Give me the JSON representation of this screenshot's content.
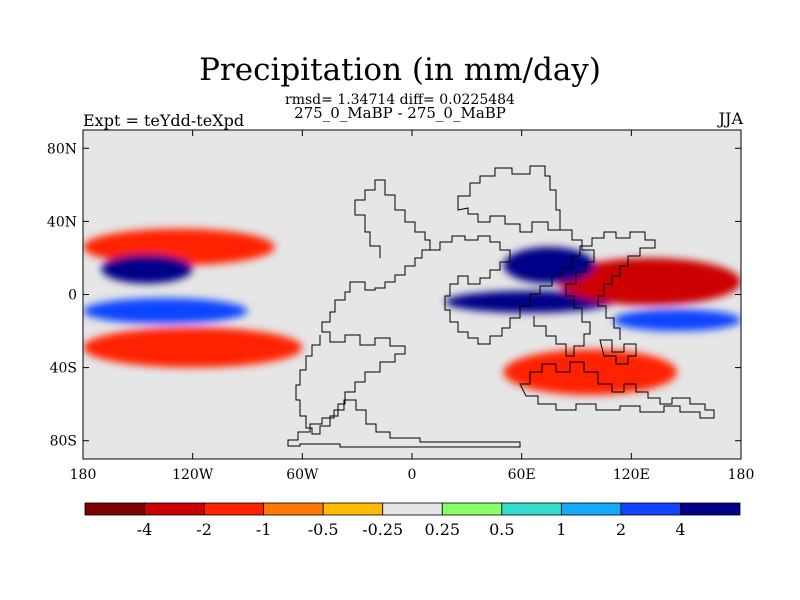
{
  "chart_data": {
    "type": "heatmap",
    "title": "Precipitation (in mm/day)",
    "subtitle_stats": "rmsd= 1.34714 diff= 0.0225484",
    "subtitle_runs": "275_0_MaBP - 275_0_MaBP",
    "left_label": "Expt = teYdd-teXpd",
    "right_label": "JJA",
    "projection": "cylindrical equidistant",
    "x_range": [
      -180,
      180
    ],
    "y_range": [
      -90,
      90
    ],
    "x_ticks": [
      {
        "value": -180,
        "label": "180"
      },
      {
        "value": -120,
        "label": "120W"
      },
      {
        "value": -60,
        "label": "60W"
      },
      {
        "value": 0,
        "label": "0"
      },
      {
        "value": 60,
        "label": "60E"
      },
      {
        "value": 120,
        "label": "120E"
      },
      {
        "value": 180,
        "label": "180"
      }
    ],
    "y_ticks": [
      {
        "value": 80,
        "label": "80N"
      },
      {
        "value": 40,
        "label": "40N"
      },
      {
        "value": 0,
        "label": "0"
      },
      {
        "value": -40,
        "label": "40S"
      },
      {
        "value": -80,
        "label": "80S"
      }
    ],
    "contour_levels": [
      -4,
      -2,
      -1,
      -0.5,
      -0.25,
      0.25,
      0.5,
      1,
      2,
      4
    ],
    "colorbar_labels": [
      "-4",
      "-2",
      "-1",
      "-0.5",
      "-0.25",
      "0.25",
      "0.5",
      "1",
      "2",
      "4"
    ],
    "colors": [
      "#7f0000",
      "#cc0000",
      "#ff2200",
      "#ff7700",
      "#ffbb00",
      "#e6e6e6",
      "#88ff66",
      "#33ddcc",
      "#11aaff",
      "#1144ff",
      "#000088"
    ],
    "anomaly_regions": [
      {
        "desc": "north Pacific ITCZ dry",
        "lon": [
          -180,
          -75
        ],
        "lat": [
          16,
          36
        ],
        "value": -2
      },
      {
        "desc": "north Pacific wet core",
        "lon": [
          -170,
          -120
        ],
        "lat": [
          6,
          22
        ],
        "value": 4
      },
      {
        "desc": "equatorial Pacific wet",
        "lon": [
          -180,
          -90
        ],
        "lat": [
          -16,
          -2
        ],
        "value": 2
      },
      {
        "desc": "south Pacific dry",
        "lon": [
          -180,
          -60
        ],
        "lat": [
          -40,
          -18
        ],
        "value": -2
      },
      {
        "desc": "Indian Ocean wet",
        "lon": [
          18,
          110
        ],
        "lat": [
          -10,
          2
        ],
        "value": 4
      },
      {
        "desc": "Asia-Pacific dry core",
        "lon": [
          80,
          180
        ],
        "lat": [
          -6,
          20
        ],
        "value": -4
      },
      {
        "desc": "South Asia wet",
        "lon": [
          50,
          100
        ],
        "lat": [
          6,
          26
        ],
        "value": 4
      },
      {
        "desc": "southern Indian Ocean dry",
        "lon": [
          50,
          145
        ],
        "lat": [
          -55,
          -30
        ],
        "value": -2
      },
      {
        "desc": "western Pacific wet band",
        "lon": [
          110,
          180
        ],
        "lat": [
          -20,
          -8
        ],
        "value": 2
      }
    ]
  }
}
